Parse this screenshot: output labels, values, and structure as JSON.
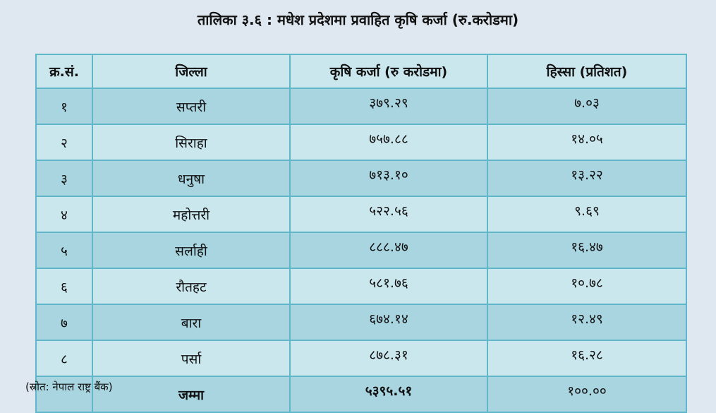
{
  "title": "तालिका ३.६ : मधेश प्रदेशमा प्रवाहित कृषि कर्जा (रु.करोडमा)",
  "headers": [
    "क्र.सं.",
    "जिल्ला",
    "कृषि कर्जा (रु करोडमा)",
    "हिस्सा (प्रतिशत)"
  ],
  "rows": [
    {
      "sn": "१",
      "district": "सप्तरी",
      "loan": "३७९.२९",
      "share": "७.०३"
    },
    {
      "sn": "२",
      "district": "सिराहा",
      "loan": "७५७.८८",
      "share": "१४.०५"
    },
    {
      "sn": "३",
      "district": "धनुषा",
      "loan": "७१३.१०",
      "share": "१३.२२"
    },
    {
      "sn": "४",
      "district": "महोत्तरी",
      "loan": "५२२.५६",
      "share": "९.६९"
    },
    {
      "sn": "५",
      "district": "सर्लाही",
      "loan": "८८८.४७",
      "share": "१६.४७"
    },
    {
      "sn": "६",
      "district": "रौतहट",
      "loan": "५८१.७६",
      "share": "१०.७८"
    },
    {
      "sn": "७",
      "district": "बारा",
      "loan": "६७४.१४",
      "share": "१२.४९"
    },
    {
      "sn": "८",
      "district": "पर्सा",
      "loan": "८७८.३१",
      "share": "१६.२८"
    }
  ],
  "total": {
    "label": "जम्मा",
    "loan": "५३९५.५१",
    "share": "१००.००"
  },
  "source": "(स्रोत: नेपाल राष्ट्र बैंक)"
}
